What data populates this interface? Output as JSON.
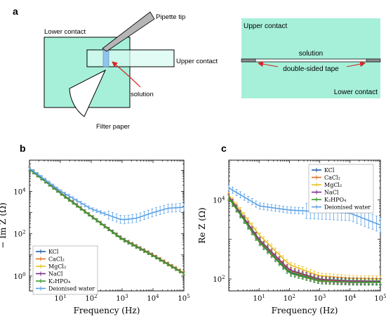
{
  "panel_labels": {
    "a": "a",
    "b": "b",
    "c": "c"
  },
  "schematic_left": {
    "lower_contact": "Lower contact",
    "upper_contact": "Upper contact",
    "pipette_tip": "Pipette tip",
    "filter_paper": "Filter paper",
    "solution": "solution"
  },
  "schematic_right": {
    "upper_contact": "Upper contact",
    "lower_contact": "Lower contact",
    "solution": "solution",
    "tape": "double-sided tape"
  },
  "colors": {
    "contact_fill": "#a6f0da",
    "contact_fill_light": "#d8faf0",
    "arrow": "#d62728",
    "tape_gray": "#8c8c8c"
  },
  "chart_data": [
    {
      "type": "line",
      "panel": "b",
      "xlabel": "Frequency (Hz)",
      "ylabel": "− Im Z (Ω)",
      "xscale": "log",
      "yscale": "log",
      "xlim": [
        1,
        100000
      ],
      "ylim": [
        0.2,
        300000
      ],
      "xticks": [
        "10^1",
        "10^2",
        "10^3",
        "10^4",
        "10^5"
      ],
      "yticks": [
        "10^0",
        "10^2",
        "10^4"
      ],
      "legend_position": "bottom-left",
      "series": [
        {
          "name": "KCl",
          "color": "#1f5fa8",
          "x": [
            1,
            10,
            100,
            1000,
            10000,
            100000
          ],
          "y": [
            120000,
            9000,
            700,
            60,
            10,
            1.4
          ]
        },
        {
          "name": "CaCl₂",
          "color": "#e07020",
          "x": [
            1,
            10,
            100,
            1000,
            10000,
            100000
          ],
          "y": [
            118000,
            8800,
            690,
            58,
            10,
            1.4
          ]
        },
        {
          "name": "MgCl₂",
          "color": "#e8c020",
          "x": [
            1,
            10,
            100,
            1000,
            10000,
            100000
          ],
          "y": [
            115000,
            8600,
            680,
            57,
            9.5,
            1.3
          ]
        },
        {
          "name": "NaCl",
          "color": "#7b2d8e",
          "x": [
            1,
            10,
            100,
            1000,
            10000,
            100000
          ],
          "y": [
            112000,
            8400,
            670,
            56,
            9.5,
            1.3
          ]
        },
        {
          "name": "K₂HPO₄",
          "color": "#3a9a2a",
          "x": [
            1,
            10,
            100,
            1000,
            10000,
            100000
          ],
          "y": [
            110000,
            8200,
            660,
            55,
            9.2,
            1.3
          ]
        },
        {
          "name": "Deionised water",
          "color": "#5aa0e6",
          "x": [
            1,
            10,
            100,
            1000,
            3000,
            10000,
            30000,
            100000
          ],
          "y": [
            125000,
            10500,
            1500,
            450,
            550,
            1000,
            1600,
            1800
          ]
        }
      ]
    },
    {
      "type": "line",
      "panel": "c",
      "xlabel": "Frequency (Hz)",
      "ylabel": "Re Z (Ω)",
      "xscale": "log",
      "yscale": "log",
      "xlim": [
        1,
        100000
      ],
      "ylim": [
        50,
        100000
      ],
      "xticks": [
        "10^1",
        "10^2",
        "10^3",
        "10^4",
        "10^5"
      ],
      "yticks": [
        "10^2",
        "10^4"
      ],
      "legend_position": "top-right",
      "series": [
        {
          "name": "KCl",
          "color": "#1f5fa8",
          "x": [
            1,
            10,
            100,
            1000,
            10000,
            100000
          ],
          "y": [
            11000,
            900,
            150,
            90,
            85,
            85
          ]
        },
        {
          "name": "CaCl₂",
          "color": "#e07020",
          "x": [
            1,
            10,
            100,
            1000,
            10000,
            100000
          ],
          "y": [
            11500,
            950,
            160,
            95,
            88,
            88
          ]
        },
        {
          "name": "MgCl₂",
          "color": "#e8c020",
          "x": [
            1,
            10,
            100,
            1000,
            10000,
            100000
          ],
          "y": [
            13000,
            1300,
            230,
            120,
            105,
            100
          ]
        },
        {
          "name": "NaCl",
          "color": "#7b2d8e",
          "x": [
            1,
            10,
            100,
            1000,
            10000,
            100000
          ],
          "y": [
            12000,
            1000,
            170,
            98,
            90,
            88
          ]
        },
        {
          "name": "K₂HPO₄",
          "color": "#3a9a2a",
          "x": [
            1,
            10,
            100,
            1000,
            10000,
            100000
          ],
          "y": [
            11000,
            850,
            140,
            88,
            82,
            82
          ]
        },
        {
          "name": "Deionised water",
          "color": "#5aa0e6",
          "x": [
            1,
            10,
            100,
            1000,
            10000,
            100000
          ],
          "y": [
            20000,
            7000,
            5500,
            5000,
            4600,
            2300
          ]
        }
      ]
    }
  ]
}
